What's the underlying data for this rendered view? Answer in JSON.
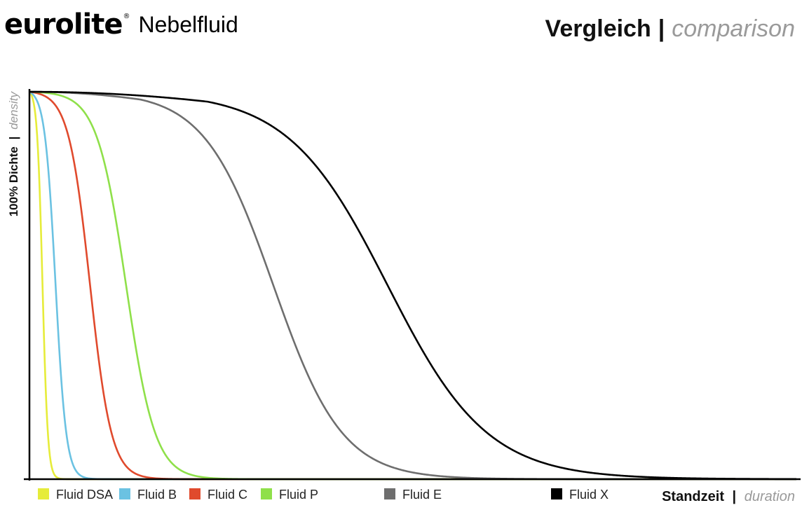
{
  "header": {
    "brand": "eurolite",
    "brand_mark": "®",
    "product": "Nebelfluid",
    "title_main": "Vergleich",
    "title_separator": "|",
    "title_sub": "comparison"
  },
  "chart_data": {
    "type": "line",
    "ylabel_main": "100% Dichte",
    "ylabel_separator": "|",
    "ylabel_sub": "density",
    "xlabel_main": "Standzeit",
    "xlabel_separator": "|",
    "xlabel_sub": "duration",
    "xlim": [
      0,
      100
    ],
    "ylim": [
      0,
      100
    ],
    "grid": false,
    "legend_position": "bottom",
    "series": [
      {
        "name": "Fluid DSA",
        "color": "#e6ec3a",
        "midpoint": 1.7,
        "width": 0.35,
        "shoulder": 0.25
      },
      {
        "name": "Fluid B",
        "color": "#6bc2e2",
        "midpoint": 3.4,
        "width": 0.7,
        "shoulder": 0.9
      },
      {
        "name": "Fluid C",
        "color": "#e04a2d",
        "midpoint": 7.9,
        "width": 1.4,
        "shoulder": 3.5
      },
      {
        "name": "Fluid P",
        "color": "#8fe04a",
        "midpoint": 12.6,
        "width": 1.9,
        "shoulder": 6.5
      },
      {
        "name": "Fluid E",
        "color": "#6e6e6e",
        "midpoint": 31.8,
        "width": 4.5,
        "shoulder": 21
      },
      {
        "name": "Fluid X",
        "color": "#000000",
        "midpoint": 46.7,
        "width": 6.5,
        "shoulder": 31
      }
    ]
  }
}
